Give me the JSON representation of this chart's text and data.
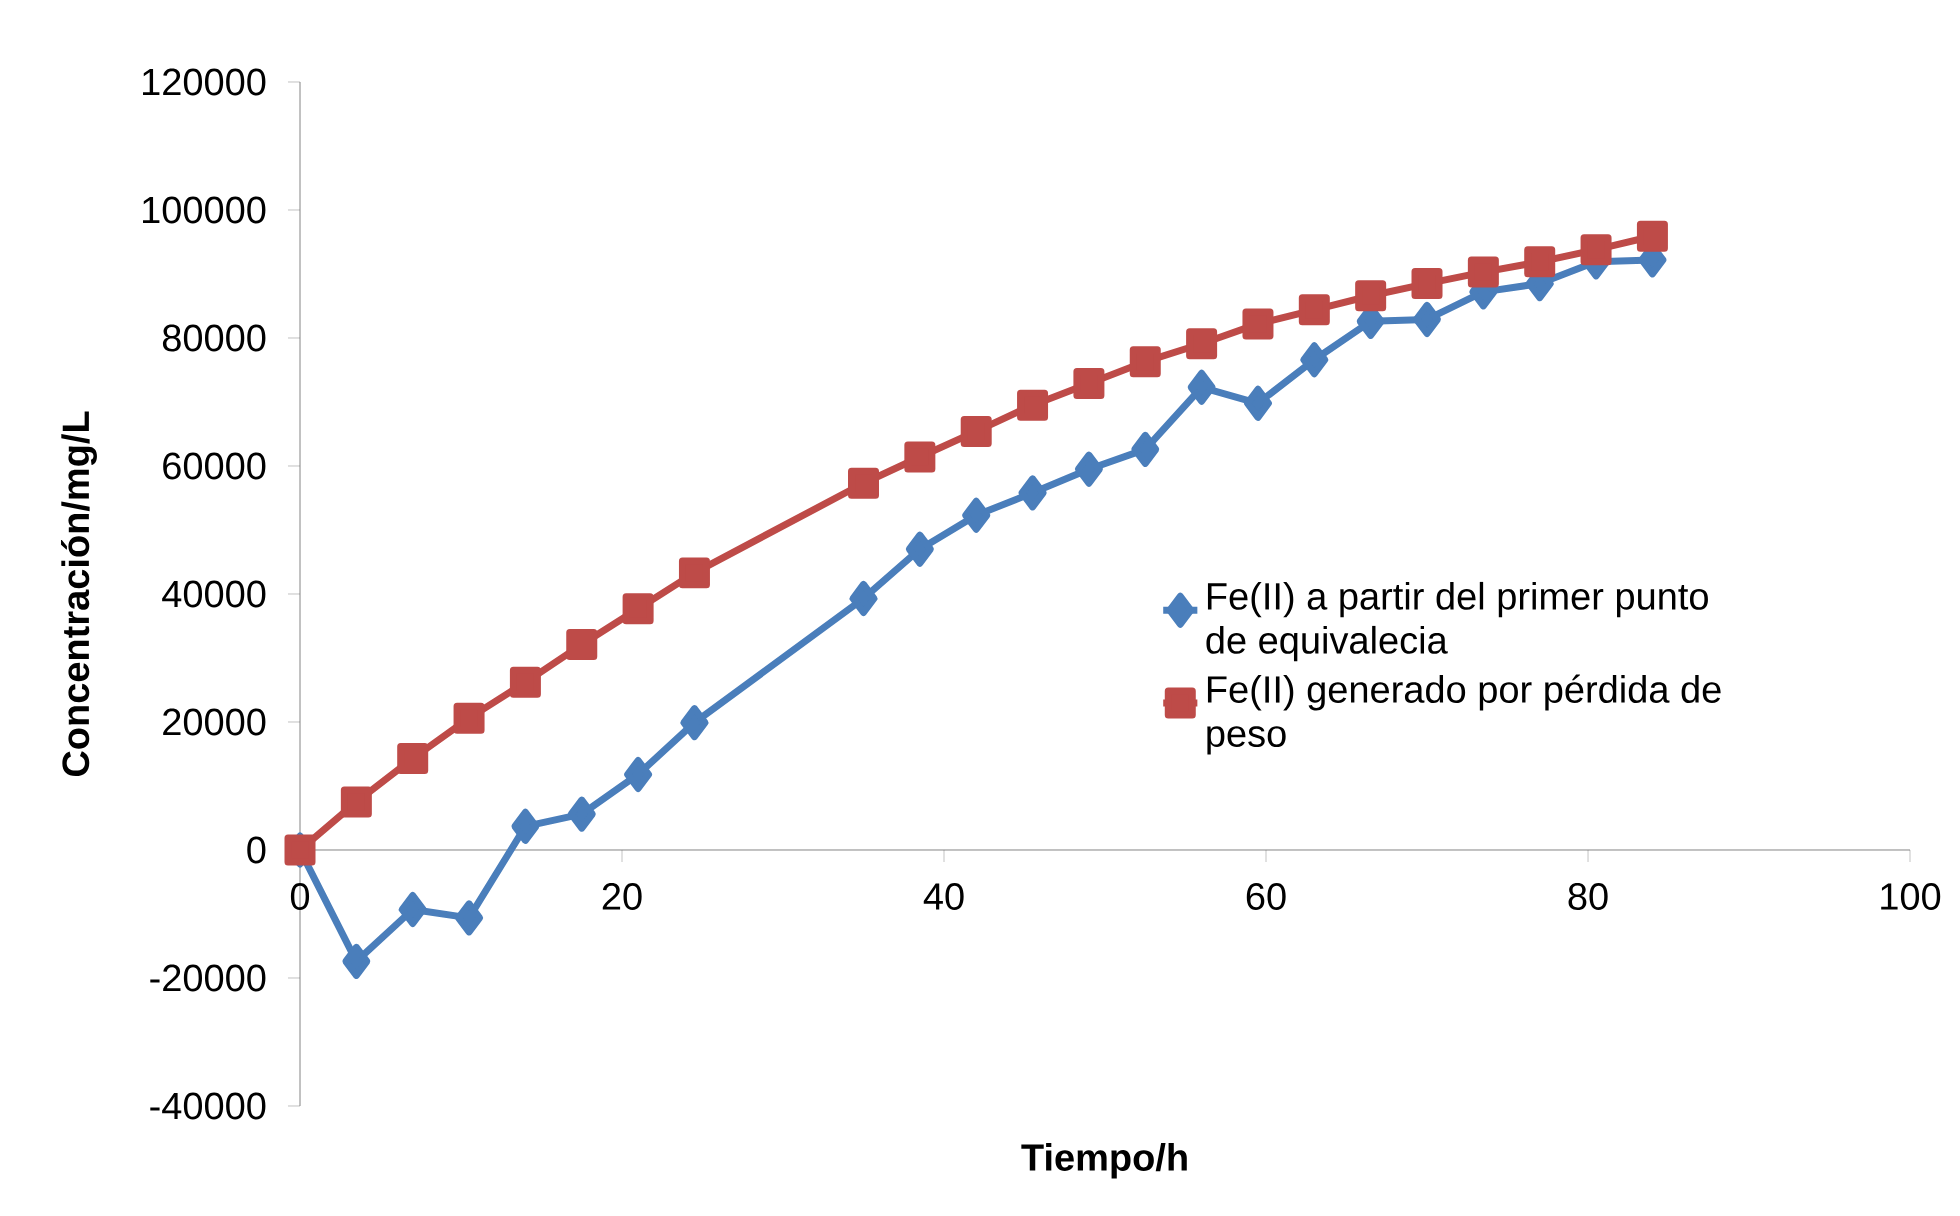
{
  "chart_data": {
    "type": "line",
    "xlabel": "Tiempo/h",
    "ylabel": "Concentración/mg/L",
    "xlim": [
      0,
      100
    ],
    "ylim": [
      -40000,
      120000
    ],
    "xticks": [
      0,
      20,
      40,
      60,
      80,
      100
    ],
    "yticks": [
      -40000,
      -20000,
      0,
      20000,
      40000,
      60000,
      80000,
      100000,
      120000
    ],
    "legend": "right",
    "line_style": "solid",
    "x": [
      0,
      3.5,
      7,
      10.5,
      14,
      17.5,
      21,
      24.5,
      35,
      38.5,
      42,
      45.5,
      49,
      52.5,
      56,
      59.5,
      63,
      66.5,
      70,
      73.5,
      77,
      80.5,
      84
    ],
    "series": [
      {
        "name": "Fe(II) a partir del primer punto de equivalecia",
        "color": "#4a7ebb",
        "marker": "diamond",
        "values": [
          0,
          -17400,
          -9300,
          -10600,
          3700,
          5600,
          11800,
          19900,
          39300,
          47000,
          52300,
          55800,
          59500,
          62600,
          72300,
          69800,
          76600,
          82600,
          82900,
          87200,
          88500,
          91900,
          92200
        ]
      },
      {
        "name": "Fe(II) generado por pérdida de peso",
        "color": "#be4b48",
        "marker": "square",
        "values": [
          0,
          7500,
          14300,
          20600,
          26200,
          32100,
          37700,
          43300,
          57300,
          61400,
          65400,
          69500,
          72900,
          76300,
          79100,
          82200,
          84400,
          86600,
          88500,
          90300,
          91900,
          93800,
          95900
        ]
      }
    ]
  }
}
